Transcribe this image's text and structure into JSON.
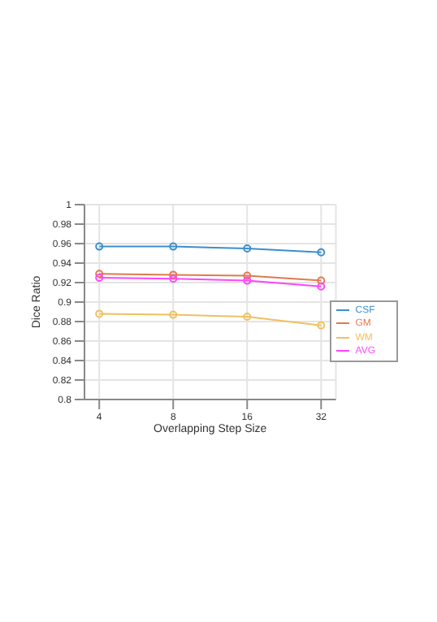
{
  "chart_data": {
    "type": "line",
    "xlabel": "Overlapping Step Size",
    "ylabel": "Dice Ratio",
    "categories": [
      "4",
      "8",
      "16",
      "32"
    ],
    "series": [
      {
        "name": "CSF",
        "color": "#3a8fd0",
        "values": [
          0.957,
          0.957,
          0.955,
          0.951
        ]
      },
      {
        "name": "GM",
        "color": "#e07a4f",
        "values": [
          0.929,
          0.928,
          0.927,
          0.922
        ]
      },
      {
        "name": "WM",
        "color": "#f0c060",
        "values": [
          0.888,
          0.887,
          0.885,
          0.876
        ]
      },
      {
        "name": "AVG",
        "color": "#ff44ff",
        "values": [
          0.925,
          0.924,
          0.922,
          0.916
        ]
      }
    ],
    "ylim": [
      0.8,
      1
    ],
    "yticks": [
      0.8,
      0.82,
      0.84,
      0.86,
      0.88,
      0.9,
      0.92,
      0.94,
      0.96,
      0.98,
      1
    ],
    "grid": true,
    "legend": "bottom right",
    "marker": "circle"
  }
}
